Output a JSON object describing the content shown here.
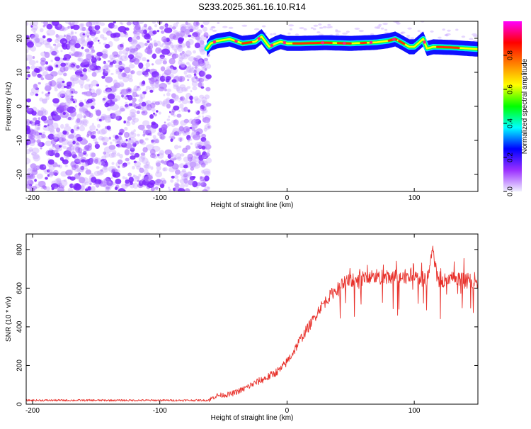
{
  "title": "S233.2025.361.16.10.R14",
  "chart_data": [
    {
      "type": "heatmap",
      "name": "spectrogram",
      "xlabel": "Height of straight line (km)",
      "ylabel": "Frequency (Hz)",
      "xlim": [
        -205,
        150
      ],
      "ylim": [
        -25,
        25
      ],
      "xticks": [
        -200,
        -100,
        0,
        100
      ],
      "yticks": [
        -20,
        -10,
        0,
        10,
        20
      ],
      "noise_region_x": [
        -205,
        -63
      ],
      "signal_tone": {
        "x_start": -63,
        "x_end": 150,
        "freq_hz": [
          [
            -63,
            17
          ],
          [
            -60,
            18.5
          ],
          [
            -55,
            19.2
          ],
          [
            -45,
            19.8
          ],
          [
            -35,
            18.5
          ],
          [
            -25,
            19
          ],
          [
            -20,
            20.5
          ],
          [
            -17,
            19
          ],
          [
            -14,
            17.5
          ],
          [
            -10,
            18.3
          ],
          [
            -5,
            19
          ],
          [
            0,
            18.5
          ],
          [
            10,
            18.5
          ],
          [
            30,
            18.7
          ],
          [
            50,
            18.5
          ],
          [
            70,
            18.8
          ],
          [
            80,
            19.3
          ],
          [
            85,
            19.8
          ],
          [
            90,
            18.8
          ],
          [
            96,
            17.5
          ],
          [
            100,
            17.5
          ],
          [
            107,
            19.8
          ],
          [
            110,
            17
          ],
          [
            115,
            17.5
          ],
          [
            130,
            17.3
          ],
          [
            150,
            16.8
          ]
        ]
      },
      "colorbar": {
        "label": "Normalized spectral amplitude",
        "range": [
          0,
          1
        ],
        "ticks": [
          {
            "value": 0.0,
            "label": "0.0"
          },
          {
            "value": 0.2,
            "label": "0.2"
          },
          {
            "value": 0.4,
            "label": "0.4"
          },
          {
            "value": 0.6,
            "label": "0.6"
          },
          {
            "value": 0.8,
            "label": "0.8"
          }
        ],
        "colormap": [
          "#f0f0ff",
          "#9b30ff",
          "#0000ff",
          "#00ffff",
          "#00ff00",
          "#ffff00",
          "#ff8000",
          "#ff0000",
          "#ff00ff"
        ]
      }
    },
    {
      "type": "line",
      "name": "snr",
      "xlabel": "Height of straight line (km)",
      "ylabel": "SNR (10 * v/v)",
      "xlim": [
        -205,
        150
      ],
      "ylim": [
        0,
        880
      ],
      "xticks": [
        -200,
        -100,
        0,
        100
      ],
      "yticks": [
        0,
        200,
        400,
        600,
        800
      ],
      "color": "#e8302a",
      "series": [
        {
          "name": "SNR",
          "points": [
            [
              -205,
              20
            ],
            [
              -150,
              20
            ],
            [
              -100,
              20
            ],
            [
              -62,
              20
            ],
            [
              -55,
              45
            ],
            [
              -45,
              50
            ],
            [
              -35,
              75
            ],
            [
              -25,
              110
            ],
            [
              -15,
              140
            ],
            [
              -5,
              180
            ],
            [
              0,
              220
            ],
            [
              5,
              270
            ],
            [
              10,
              330
            ],
            [
              15,
              380
            ],
            [
              20,
              430
            ],
            [
              25,
              490
            ],
            [
              30,
              530
            ],
            [
              35,
              570
            ],
            [
              40,
              600
            ],
            [
              45,
              620
            ],
            [
              50,
              640
            ],
            [
              60,
              650
            ],
            [
              70,
              660
            ],
            [
              80,
              650
            ],
            [
              90,
              660
            ],
            [
              100,
              665
            ],
            [
              105,
              650
            ],
            [
              110,
              640
            ],
            [
              112,
              700
            ],
            [
              115,
              790
            ],
            [
              118,
              650
            ],
            [
              125,
              640
            ],
            [
              135,
              640
            ],
            [
              150,
              640
            ]
          ]
        }
      ]
    }
  ]
}
